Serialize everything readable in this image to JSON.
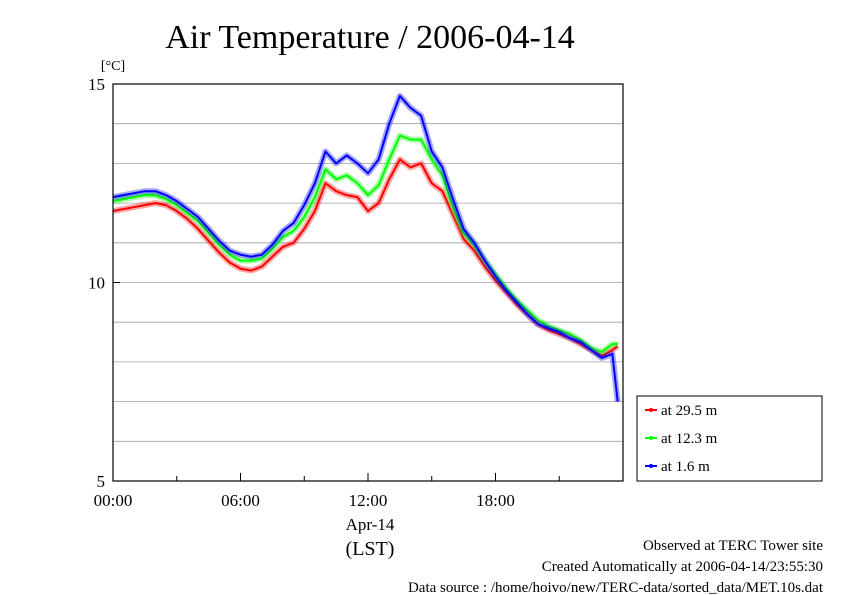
{
  "chart_data": {
    "type": "line",
    "title": "Air Temperature / 2006-04-14",
    "ylabel": "[°C]",
    "xlabel": "Apr-14",
    "xlabel_sub": "(LST)",
    "ylim": [
      5,
      15
    ],
    "xlim_hours": [
      0,
      24
    ],
    "y_ticks": [
      5,
      10,
      15
    ],
    "y_tick_labels": [
      "5",
      "10",
      "15"
    ],
    "x_ticks_hours": [
      0,
      6,
      12,
      18
    ],
    "x_tick_labels": [
      "00:00",
      "06:00",
      "12:00",
      "18:00"
    ],
    "grid": "horizontal",
    "legend_position": "right-bottom",
    "x": [
      0,
      0.5,
      1,
      1.5,
      2,
      2.5,
      3,
      3.5,
      4,
      4.5,
      5,
      5.5,
      6,
      6.5,
      7,
      7.5,
      8,
      8.5,
      9,
      9.5,
      10,
      10.5,
      11,
      11.5,
      12,
      12.5,
      13,
      13.5,
      14,
      14.5,
      15,
      15.5,
      16,
      16.5,
      17,
      17.5,
      18,
      18.5,
      19,
      19.5,
      20,
      20.5,
      21,
      21.5,
      22,
      22.5,
      23,
      23.5,
      23.75
    ],
    "series": [
      {
        "name": "at 29.5 m",
        "color": "#ff0000",
        "values": [
          11.8,
          11.85,
          11.9,
          11.95,
          12.0,
          11.95,
          11.8,
          11.6,
          11.35,
          11.05,
          10.75,
          10.5,
          10.35,
          10.3,
          10.4,
          10.65,
          10.9,
          11.0,
          11.35,
          11.8,
          12.5,
          12.3,
          12.2,
          12.15,
          11.8,
          12.0,
          12.6,
          13.1,
          12.9,
          13.0,
          12.5,
          12.3,
          11.7,
          11.1,
          10.8,
          10.4,
          10.05,
          9.75,
          9.45,
          9.2,
          8.95,
          8.8,
          8.7,
          8.6,
          8.45,
          8.3,
          8.15,
          8.3,
          8.4
        ]
      },
      {
        "name": "at 12.3 m",
        "color": "#00ff00",
        "values": [
          12.05,
          12.1,
          12.15,
          12.2,
          12.2,
          12.1,
          11.95,
          11.75,
          11.55,
          11.25,
          10.95,
          10.7,
          10.55,
          10.55,
          10.6,
          10.85,
          11.15,
          11.3,
          11.65,
          12.15,
          12.85,
          12.6,
          12.7,
          12.5,
          12.2,
          12.45,
          13.1,
          13.7,
          13.6,
          13.6,
          13.1,
          12.7,
          11.9,
          11.25,
          10.95,
          10.55,
          10.2,
          9.85,
          9.55,
          9.3,
          9.05,
          8.9,
          8.8,
          8.7,
          8.55,
          8.35,
          8.25,
          8.45,
          8.45
        ]
      },
      {
        "name": "at 1.6 m",
        "color": "#0000ff",
        "values": [
          12.15,
          12.2,
          12.25,
          12.3,
          12.3,
          12.2,
          12.05,
          11.85,
          11.65,
          11.35,
          11.05,
          10.8,
          10.7,
          10.65,
          10.7,
          10.95,
          11.3,
          11.5,
          11.95,
          12.5,
          13.3,
          13.0,
          13.2,
          13.0,
          12.75,
          13.1,
          14.0,
          14.7,
          14.4,
          14.2,
          13.3,
          12.9,
          12.1,
          11.35,
          11.0,
          10.55,
          10.15,
          9.8,
          9.5,
          9.2,
          8.95,
          8.85,
          8.75,
          8.6,
          8.5,
          8.3,
          8.1,
          8.2,
          7.0
        ]
      }
    ]
  },
  "footer": {
    "site": "Observed at TERC Tower site",
    "created": "Created Automatically at 2006-04-14/23:55:30",
    "source": "Data source : /home/hoivo/new/TERC-data/sorted_data/MET.10s.dat"
  }
}
